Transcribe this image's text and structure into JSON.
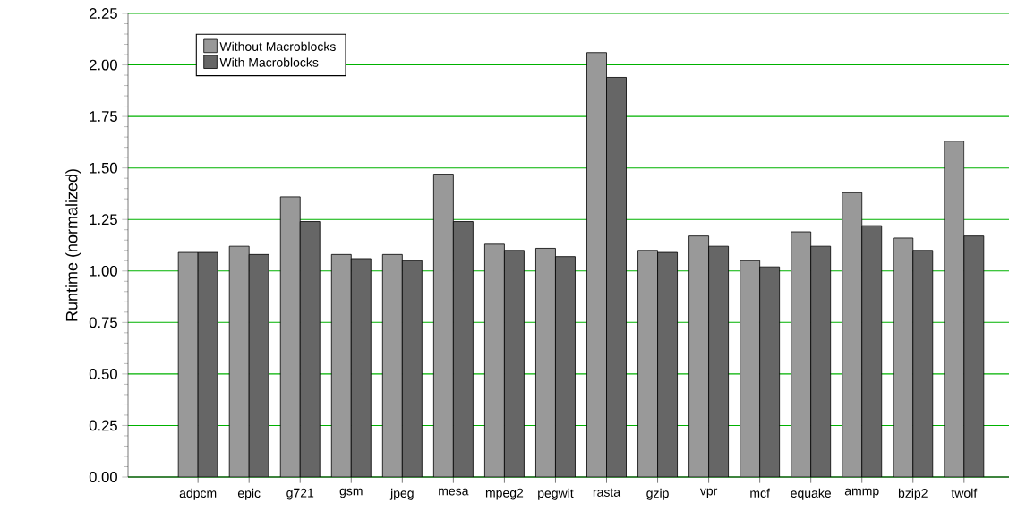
{
  "chart_data": {
    "type": "bar",
    "ylabel": "Runtime (normalized)",
    "categories": [
      "adpcm",
      "epic",
      "g721",
      "gsm",
      "jpeg",
      "mesa",
      "mpeg2",
      "pegwit",
      "rasta",
      "gzip",
      "vpr",
      "mcf",
      "equake",
      "ammp",
      "bzip2",
      "twolf"
    ],
    "series": [
      {
        "name": "Without Macroblocks",
        "color": "#999999",
        "values": [
          1.09,
          1.12,
          1.36,
          1.08,
          1.08,
          1.47,
          1.13,
          1.11,
          2.06,
          1.1,
          1.17,
          1.05,
          1.19,
          1.38,
          1.16,
          1.63
        ]
      },
      {
        "name": "With Macroblocks",
        "color": "#666666",
        "values": [
          1.09,
          1.08,
          1.24,
          1.06,
          1.05,
          1.24,
          1.1,
          1.07,
          1.94,
          1.09,
          1.12,
          1.02,
          1.12,
          1.22,
          1.1,
          1.17
        ]
      }
    ],
    "ylim": [
      0,
      2.25
    ],
    "yticks": [
      {
        "value": 0,
        "label": "0.00"
      },
      {
        "value": 0.25,
        "label": "0.25"
      },
      {
        "value": 0.5,
        "label": "0.50"
      },
      {
        "value": 0.75,
        "label": "0.75"
      },
      {
        "value": 1,
        "label": "1.00"
      },
      {
        "value": 1.25,
        "label": "1.25"
      },
      {
        "value": 1.5,
        "label": "1.50"
      },
      {
        "value": 1.75,
        "label": "1.75"
      },
      {
        "value": 2,
        "label": "2.00"
      },
      {
        "value": 2.25,
        "label": "2.25"
      }
    ],
    "grid": "y",
    "legend": "top left"
  }
}
